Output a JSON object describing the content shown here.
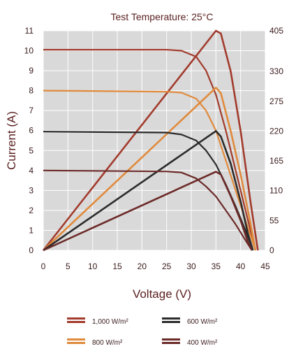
{
  "chart_data": {
    "type": "line",
    "title": "Test Temperature: 25°C",
    "xlabel": "Voltage (V)",
    "ylabel": "Current (A)",
    "x_ticks": [
      "0",
      "5",
      "10",
      "15",
      "20",
      "25",
      "30",
      "35",
      "40",
      "45"
    ],
    "y_left_ticks": [
      "0",
      "1",
      "2",
      "3",
      "4",
      "5",
      "6",
      "7",
      "8",
      "9",
      "10",
      "11"
    ],
    "y_right_ticks": [
      "0",
      "55",
      "110",
      "165",
      "220",
      "275",
      "330",
      "405"
    ],
    "xlim": [
      0,
      45
    ],
    "ylim_left": [
      0,
      11
    ],
    "ylim_right": [
      0,
      405
    ],
    "grid": true,
    "legend_position": "bottom",
    "series": [
      {
        "name": "1,000 W/m²",
        "color": "#a23b2c",
        "iv": [
          [
            0,
            10.05
          ],
          [
            25,
            10.05
          ],
          [
            28,
            10.0
          ],
          [
            31,
            9.7
          ],
          [
            33,
            9.0
          ],
          [
            35,
            7.8
          ],
          [
            37,
            6.0
          ],
          [
            39,
            4.0
          ],
          [
            41,
            2.0
          ],
          [
            43,
            0
          ]
        ],
        "pv": [
          [
            0,
            0
          ],
          [
            35,
            405
          ],
          [
            36,
            400
          ],
          [
            38,
            330
          ],
          [
            40,
            220
          ],
          [
            42,
            90
          ],
          [
            43.5,
            0
          ]
        ]
      },
      {
        "name": "800 W/m²",
        "color": "#e08a3c",
        "iv": [
          [
            0,
            8.0
          ],
          [
            25,
            7.95
          ],
          [
            28,
            7.9
          ],
          [
            31,
            7.6
          ],
          [
            33,
            7.0
          ],
          [
            35,
            6.0
          ],
          [
            37,
            4.5
          ],
          [
            39,
            3.0
          ],
          [
            41,
            1.5
          ],
          [
            43,
            0
          ]
        ],
        "pv": [
          [
            0,
            0
          ],
          [
            35,
            300
          ],
          [
            36,
            290
          ],
          [
            38,
            220
          ],
          [
            40,
            140
          ],
          [
            42,
            50
          ],
          [
            43,
            0
          ]
        ]
      },
      {
        "name": "600 W/m²",
        "color": "#2b2b2b",
        "iv": [
          [
            0,
            5.95
          ],
          [
            25,
            5.9
          ],
          [
            28,
            5.8
          ],
          [
            31,
            5.5
          ],
          [
            33,
            5.0
          ],
          [
            35,
            4.3
          ],
          [
            37,
            3.3
          ],
          [
            39,
            2.2
          ],
          [
            41,
            1.0
          ],
          [
            42.5,
            0
          ]
        ],
        "pv": [
          [
            0,
            0
          ],
          [
            35,
            220
          ],
          [
            36,
            210
          ],
          [
            38,
            160
          ],
          [
            40,
            90
          ],
          [
            41.5,
            30
          ],
          [
            42.5,
            0
          ]
        ]
      },
      {
        "name": "400 W/m²",
        "color": "#6b2a28",
        "iv": [
          [
            0,
            4.0
          ],
          [
            25,
            3.95
          ],
          [
            28,
            3.9
          ],
          [
            31,
            3.6
          ],
          [
            33,
            3.2
          ],
          [
            35,
            2.7
          ],
          [
            37,
            2.0
          ],
          [
            39,
            1.3
          ],
          [
            41,
            0.5
          ],
          [
            42.3,
            0
          ]
        ],
        "pv": [
          [
            0,
            0
          ],
          [
            35,
            145
          ],
          [
            36,
            140
          ],
          [
            38,
            100
          ],
          [
            40,
            55
          ],
          [
            41.5,
            15
          ],
          [
            42.3,
            0
          ]
        ]
      }
    ]
  }
}
